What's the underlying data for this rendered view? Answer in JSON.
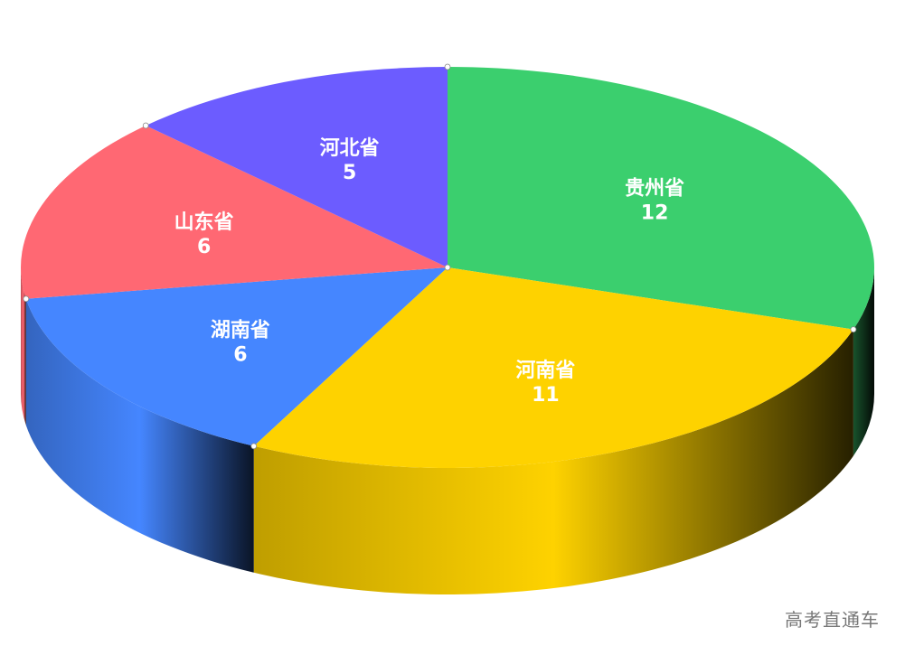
{
  "chart_data": {
    "type": "pie",
    "style": "3d",
    "slices": [
      {
        "label": "贵州省",
        "value": 12,
        "color": "#3bcf6e"
      },
      {
        "label": "河南省",
        "value": 11,
        "color": "#fed200"
      },
      {
        "label": "湖南省",
        "value": 6,
        "color": "#4586ff"
      },
      {
        "label": "山东省",
        "value": 6,
        "color": "#ff6873"
      },
      {
        "label": "河北省",
        "value": 5,
        "color": "#6c5cff"
      }
    ],
    "legend": "none"
  },
  "watermark": "高考直通车"
}
